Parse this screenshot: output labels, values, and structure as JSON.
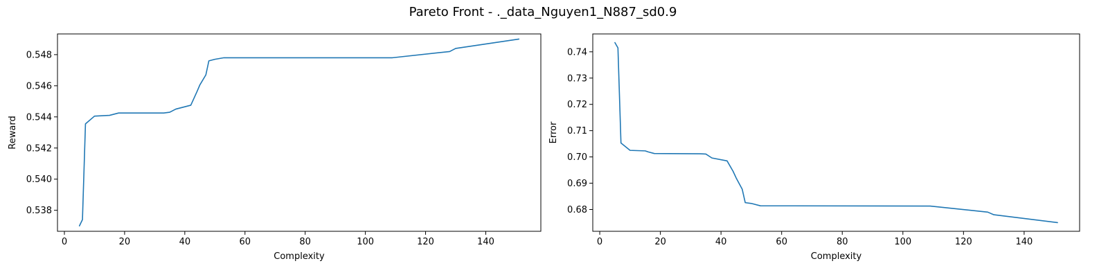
{
  "figure": {
    "title": "Pareto Front - ._data_Nguyen1_N887_sd0.9"
  },
  "chart_data": [
    {
      "type": "line",
      "title": "",
      "xlabel": "Complexity",
      "ylabel": "Reward",
      "xlim": [
        -2.3,
        158.3
      ],
      "ylim": [
        0.53665,
        0.54933
      ],
      "xticks": [
        0,
        20,
        40,
        60,
        80,
        100,
        120,
        140
      ],
      "yticks": [
        0.538,
        0.54,
        0.542,
        0.544,
        0.546,
        0.548
      ],
      "xtick_labels": [
        "0",
        "20",
        "40",
        "60",
        "80",
        "100",
        "120",
        "140"
      ],
      "ytick_labels": [
        "0.538",
        "0.540",
        "0.542",
        "0.544",
        "0.546",
        "0.548"
      ],
      "grid": false,
      "series": [
        {
          "color": "#1f77b4",
          "x": [
            5,
            6,
            7,
            10,
            15,
            16,
            18,
            33,
            35,
            37,
            42,
            44,
            45,
            47,
            48,
            50,
            53,
            109,
            128,
            130,
            151
          ],
          "y": [
            0.537,
            0.5374,
            0.54355,
            0.54405,
            0.5441,
            0.54415,
            0.54425,
            0.54425,
            0.5443,
            0.5445,
            0.54475,
            0.5456,
            0.54605,
            0.5467,
            0.5476,
            0.5477,
            0.5478,
            0.5478,
            0.5482,
            0.5484,
            0.549
          ]
        }
      ]
    },
    {
      "type": "line",
      "title": "",
      "xlabel": "Complexity",
      "ylabel": "Error",
      "xlim": [
        -2.3,
        158.3
      ],
      "ylim": [
        0.6717,
        0.7468
      ],
      "xticks": [
        0,
        20,
        40,
        60,
        80,
        100,
        120,
        140
      ],
      "yticks": [
        0.68,
        0.69,
        0.7,
        0.71,
        0.72,
        0.73,
        0.74
      ],
      "xtick_labels": [
        "0",
        "20",
        "40",
        "60",
        "80",
        "100",
        "120",
        "140"
      ],
      "ytick_labels": [
        "0.68",
        "0.69",
        "0.70",
        "0.71",
        "0.72",
        "0.73",
        "0.74"
      ],
      "grid": false,
      "series": [
        {
          "color": "#1f77b4",
          "x": [
            5,
            6,
            7,
            10,
            15,
            16,
            18,
            33,
            35,
            37,
            42,
            44,
            45,
            47,
            48,
            50,
            53,
            109,
            128,
            130,
            151
          ],
          "y": [
            0.7435,
            0.7415,
            0.7053,
            0.7025,
            0.7023,
            0.7019,
            0.7013,
            0.7012,
            0.7011,
            0.6996,
            0.6985,
            0.6945,
            0.692,
            0.6877,
            0.6826,
            0.6823,
            0.6814,
            0.6813,
            0.679,
            0.678,
            0.675
          ]
        }
      ]
    }
  ]
}
